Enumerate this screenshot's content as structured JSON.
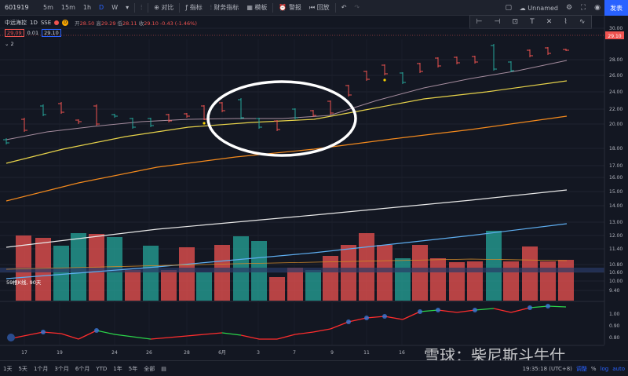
{
  "toolbar": {
    "symbol": "601919",
    "intervals": [
      "5m",
      "15m",
      "1h",
      "D",
      "W"
    ],
    "compare_label": "对比",
    "indicators_label": "指标",
    "financials_label": "财务指标",
    "template_label": "模板",
    "alert_label": "警报",
    "replay_label": "回放",
    "layout_name": "Unnamed",
    "publish_label": "发表"
  },
  "legend": {
    "name": "中远海控",
    "interval": "1D",
    "exchange": "SSE",
    "badge": "D",
    "open_label": "开",
    "open": "28.50",
    "high_label": "高",
    "high": "29.29",
    "low_label": "低",
    "low": "28.11",
    "close_label": "收",
    "close": "29.10",
    "change": "-0.43 (-1.46%)",
    "bid": "29.09",
    "step": "0.01",
    "ask": "29.10",
    "collapse": "2"
  },
  "volume_label": "59根K线, 90天",
  "price_axis": {
    "labels": [
      "30.00",
      "29.10",
      "28.00",
      "26.00",
      "24.00",
      "22.00",
      "20.00",
      "18.00",
      "17.00",
      "16.00",
      "15.00",
      "14.00",
      "13.00",
      "12.00",
      "11.40",
      "10.80",
      "10.60",
      "10.00",
      "9.40"
    ],
    "current": "29.10"
  },
  "indicator_axis": [
    "1.00",
    "0.90",
    "0.80"
  ],
  "time_axis": [
    "17",
    "19",
    "24",
    "26",
    "28",
    "6月",
    "3",
    "7",
    "9",
    "11",
    "16"
  ],
  "timestamp": "19:35:18 (UTC+8)",
  "bottom": {
    "ranges": [
      "1天",
      "5天",
      "1个月",
      "3个月",
      "6个月",
      "YTD",
      "1年",
      "5年",
      "全部"
    ],
    "adjust": "调整",
    "percent": "%",
    "log": "log",
    "auto": "auto"
  },
  "watermark": "雪球：柴尼斯斗牛仕",
  "colors": {
    "up": "#ef5350",
    "down": "#26a69a",
    "accent": "#2962ff",
    "highlight": "#ffffff"
  }
}
